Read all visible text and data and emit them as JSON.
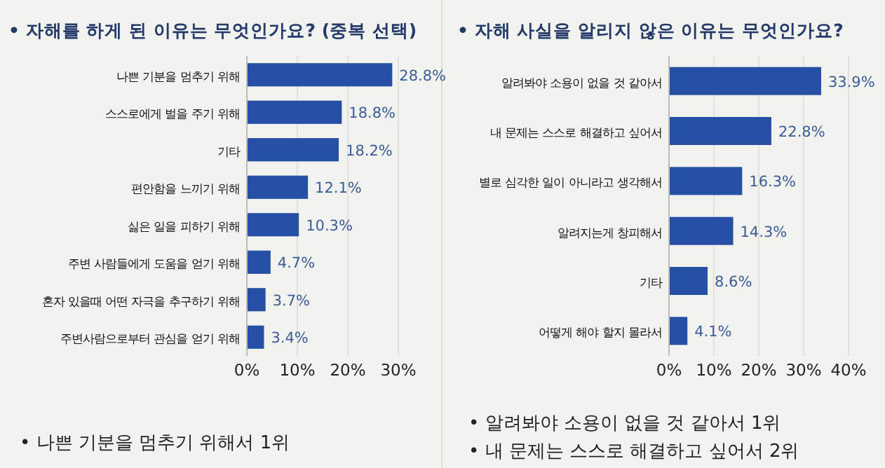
{
  "chart_data": [
    {
      "type": "bar",
      "orientation": "horizontal",
      "title": "• 자해를 하게 된 이유는 무엇인가요? (중복 선택)",
      "categories": [
        "나쁜 기분을 멈추기 위해",
        "스스로에게 벌을 주기 위해",
        "기타",
        "편안함을 느끼기 위해",
        "싫은 일을 피하기 위해",
        "주변 사람들에게 도움을 얻기 위해",
        "혼자 있을때 어떤 자극을 추구하기 위해",
        "주변사람으로부터 관심을 얻기 위해"
      ],
      "values": [
        28.8,
        18.8,
        18.2,
        12.1,
        10.3,
        4.7,
        3.7,
        3.4
      ],
      "value_labels": [
        "28.8%",
        "18.8%",
        "18.2%",
        "12.1%",
        "10.3%",
        "4.7%",
        "3.7%",
        "3.4%"
      ],
      "color": "#2550a4",
      "xlim": [
        0,
        30
      ],
      "xticks": [
        {
          "value": 0,
          "label": "0%"
        },
        {
          "value": 10,
          "label": "10%"
        },
        {
          "value": 20,
          "label": "20%"
        },
        {
          "value": 30,
          "label": "30%"
        }
      ],
      "grid": "x",
      "annotations": [
        "• 나쁜 기분을 멈추기 위해서 1위"
      ]
    },
    {
      "type": "bar",
      "orientation": "horizontal",
      "title": "• 자해 사실을 알리지 않은 이유는 무엇인가요?",
      "categories": [
        "알려봐야 소용이 없을 것 같아서",
        "내 문제는 스스로 해결하고 싶어서",
        "별로 심각한 일이 아니라고 생각해서",
        "알려지는게 창피해서",
        "기타",
        "어떻게 해야 할지 몰라서"
      ],
      "values": [
        33.9,
        22.8,
        16.3,
        14.3,
        8.6,
        4.1
      ],
      "value_labels": [
        "33.9%",
        "22.8%",
        "16.3%",
        "14.3%",
        "8.6%",
        "4.1%"
      ],
      "color": "#2550a4",
      "xlim": [
        0,
        40
      ],
      "xticks": [
        {
          "value": 0,
          "label": "0%"
        },
        {
          "value": 10,
          "label": "10%"
        },
        {
          "value": 20,
          "label": "20%"
        },
        {
          "value": 30,
          "label": "30%"
        },
        {
          "value": 40,
          "label": "40%"
        }
      ],
      "grid": "x",
      "annotations": [
        "• 알려봐야 소용이 없을 것 같아서 1위",
        "• 내 문제는 스스로 해결하고 싶어서 2위"
      ]
    }
  ]
}
